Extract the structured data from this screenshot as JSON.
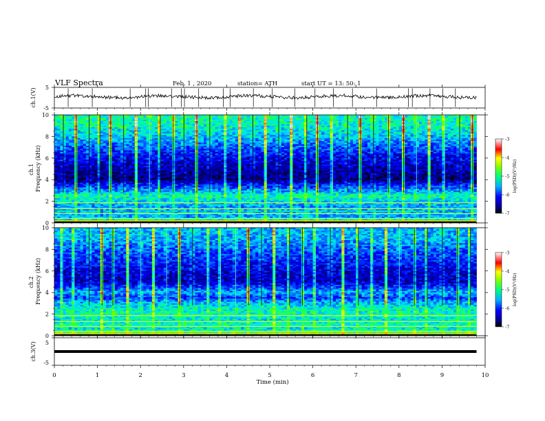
{
  "header": {
    "title": "VLF  Spectra",
    "date": "Feb. 1  , 2020",
    "station": "station= ATH",
    "start": "start  UT  =    13: 50: 1"
  },
  "chart_data": [
    {
      "type": "line",
      "name": "ch1-waveform",
      "ylabel": "ch.1(V)",
      "ytick_labels": [
        "5",
        "-5"
      ],
      "ylim": [
        -5,
        5
      ],
      "xlim": [
        0,
        10
      ],
      "x_extent": [
        0,
        9.8
      ],
      "baseline": 0.5,
      "spike_times": [
        0.32,
        0.88,
        1.76,
        2.12,
        2.18,
        2.72,
        2.95,
        3.02,
        3.35,
        3.92,
        4.08,
        4.62,
        5.06,
        5.58,
        6.05,
        6.48,
        6.92,
        7.48,
        8.22,
        8.31,
        8.72,
        9.02,
        9.31
      ]
    },
    {
      "type": "heatmap",
      "name": "ch1-spectrogram",
      "ylabel": "ch.1\nFrequency  (kHz)",
      "ytick_labels": [
        "0",
        "2",
        "4",
        "6",
        "8",
        "10"
      ],
      "ylim": [
        0,
        10
      ],
      "xlim": [
        0,
        10
      ],
      "x_extent": [
        0,
        9.8
      ],
      "colorbar": {
        "label": "log(PSD)(V²/Hz)",
        "range": [
          -7,
          -3
        ],
        "tick_labels": [
          "-3",
          "-4",
          "-5",
          "-6",
          "-7"
        ]
      },
      "level_profile_logpsd": [
        {
          "f": 0.0,
          "v": -4.2
        },
        {
          "f": 0.3,
          "v": -5.2
        },
        {
          "f": 0.6,
          "v": -5.6
        },
        {
          "f": 1.0,
          "v": -5.4
        },
        {
          "f": 1.5,
          "v": -5.6
        },
        {
          "f": 2.0,
          "v": -5.3
        },
        {
          "f": 2.5,
          "v": -5.0
        },
        {
          "f": 3.0,
          "v": -5.6
        },
        {
          "f": 3.5,
          "v": -6.1
        },
        {
          "f": 4.0,
          "v": -6.8
        },
        {
          "f": 5.0,
          "v": -6.6
        },
        {
          "f": 6.0,
          "v": -6.3
        },
        {
          "f": 7.0,
          "v": -5.9
        },
        {
          "f": 8.0,
          "v": -5.4
        },
        {
          "f": 9.0,
          "v": -5.1
        },
        {
          "f": 10.0,
          "v": -5.0
        }
      ],
      "impulsive_times": [
        0.2,
        0.5,
        0.8,
        1.05,
        1.3,
        1.6,
        1.9,
        2.2,
        2.45,
        2.75,
        3.0,
        3.3,
        3.6,
        3.95,
        4.3,
        4.6,
        4.9,
        5.2,
        5.5,
        5.85,
        6.1,
        6.45,
        6.8,
        7.1,
        7.4,
        7.75,
        8.1,
        8.4,
        8.7,
        9.05,
        9.4,
        9.7
      ]
    },
    {
      "type": "heatmap",
      "name": "ch2-spectrogram",
      "ylabel": "ch.2\nFrequency  (kHz)",
      "ytick_labels": [
        "0",
        "2",
        "4",
        "6",
        "8",
        "10"
      ],
      "ylim": [
        0,
        10
      ],
      "xlim": [
        0,
        10
      ],
      "x_extent": [
        0,
        9.8
      ],
      "colorbar": {
        "label": "log(PSD)(V²/Hz)",
        "range": [
          -7,
          -3
        ],
        "tick_labels": [
          "-3",
          "-4",
          "-5",
          "-6",
          "-7"
        ]
      },
      "level_profile_logpsd": [
        {
          "f": 0.0,
          "v": -4.0
        },
        {
          "f": 0.3,
          "v": -4.8
        },
        {
          "f": 0.6,
          "v": -5.2
        },
        {
          "f": 1.0,
          "v": -5.0
        },
        {
          "f": 1.5,
          "v": -5.2
        },
        {
          "f": 2.0,
          "v": -5.0
        },
        {
          "f": 2.5,
          "v": -5.1
        },
        {
          "f": 3.0,
          "v": -5.4
        },
        {
          "f": 3.5,
          "v": -6.0
        },
        {
          "f": 4.0,
          "v": -5.5
        },
        {
          "f": 5.0,
          "v": -6.5
        },
        {
          "f": 6.0,
          "v": -6.4
        },
        {
          "f": 7.0,
          "v": -6.1
        },
        {
          "f": 8.0,
          "v": -5.8
        },
        {
          "f": 9.0,
          "v": -5.5
        },
        {
          "f": 10.0,
          "v": -5.4
        }
      ],
      "impulsive_times": [
        0.15,
        0.45,
        0.8,
        1.1,
        1.35,
        1.7,
        2.0,
        2.3,
        2.6,
        2.9,
        3.2,
        3.55,
        3.85,
        4.2,
        4.5,
        4.8,
        5.1,
        5.45,
        5.75,
        6.05,
        6.4,
        6.7,
        7.05,
        7.35,
        7.7,
        8.0,
        8.35,
        8.65,
        9.0,
        9.35,
        9.65
      ]
    },
    {
      "type": "line",
      "name": "ch3-waveform",
      "ylabel": "ch.3(V)",
      "ytick_labels": [
        "5",
        "-5"
      ],
      "ylim": [
        -5,
        5
      ],
      "xlim": [
        0,
        10
      ],
      "x_extent": [
        0,
        9.8
      ],
      "baseline": 0
    }
  ],
  "x_axis": {
    "label": "Time  (min)",
    "tick_labels": [
      "0",
      "1",
      "2",
      "3",
      "4",
      "5",
      "6",
      "7",
      "8",
      "9",
      "10"
    ]
  },
  "palette": [
    "#000080",
    "#0000ff",
    "#0060ff",
    "#00c0ff",
    "#00ffd0",
    "#40ff40",
    "#ffff00",
    "#ff8000",
    "#ff0000",
    "#ffffff"
  ]
}
